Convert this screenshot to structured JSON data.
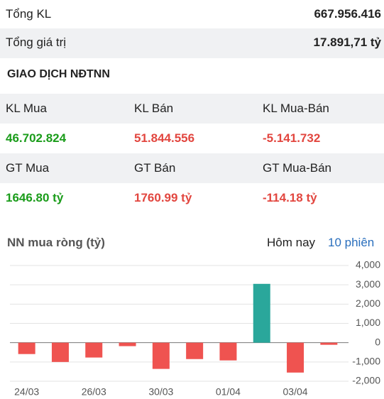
{
  "summary": [
    {
      "label": "Tổng KL",
      "value": "667.956.416"
    },
    {
      "label": "Tổng giá trị",
      "value": "17.891,71 tỷ"
    }
  ],
  "section_title": "GIAO DỊCH NĐTNN",
  "table": {
    "rows": [
      [
        "KL Mua",
        "KL Bán",
        "KL Mua-Bán"
      ],
      [
        "46.702.824",
        "51.844.556",
        "-5.141.732"
      ],
      [
        "GT Mua",
        "GT Bán",
        "GT Mua-Bán"
      ],
      [
        "1646.80 tỷ",
        "1760.99 tỷ",
        "-114.18 tỷ"
      ]
    ]
  },
  "chart_header": {
    "title": "NN mua ròng (tỷ)",
    "tabs": [
      "Hôm nay",
      "10 phiên"
    ]
  },
  "chart_data": {
    "type": "bar",
    "categories": [
      "24/03",
      null,
      "26/03",
      null,
      "30/03",
      null,
      "01/04",
      null,
      "03/04",
      null
    ],
    "values": [
      -590,
      -1000,
      -770,
      -180,
      -1360,
      -850,
      -920,
      3050,
      -1550,
      -110
    ],
    "positive_color": "#2aa79b",
    "negative_color": "#ef5350",
    "ylim": [
      -2000,
      4000
    ],
    "yticks": [
      {
        "value": 4000,
        "label": "4,000"
      },
      {
        "value": 3000,
        "label": "3,000"
      },
      {
        "value": 2000,
        "label": "2,000"
      },
      {
        "value": 1000,
        "label": "1,000"
      },
      0,
      {
        "value": -1000,
        "label": "-1,000"
      },
      {
        "value": -2000,
        "label": "-2,000"
      }
    ],
    "grid": true
  }
}
